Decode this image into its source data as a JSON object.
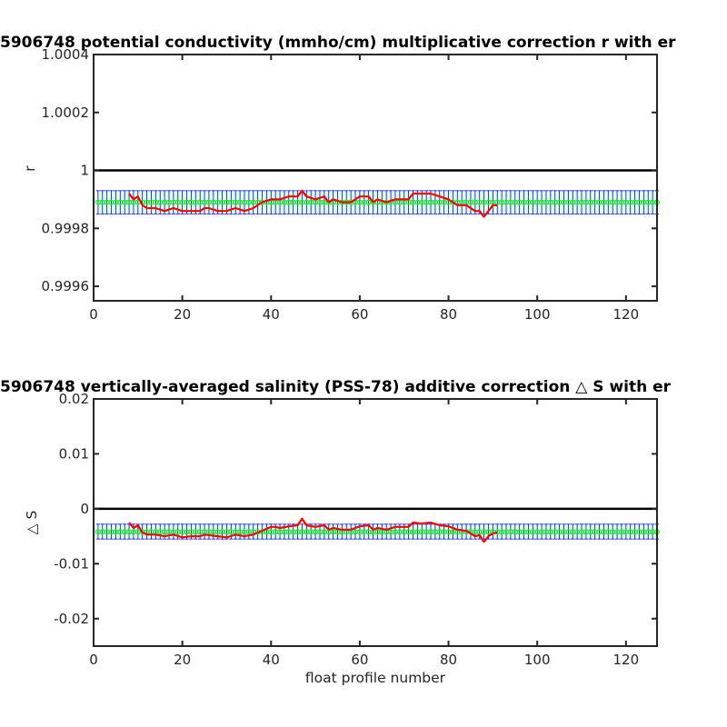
{
  "chart_data": [
    {
      "type": "line",
      "title": "5906748 potential conductivity (mmho/cm) multiplicative correction r with er",
      "xlabel": "",
      "ylabel": "r",
      "xlim": [
        0,
        127
      ],
      "ylim": [
        0.99955,
        1.0004
      ],
      "xticks": [
        0,
        20,
        40,
        60,
        80,
        100,
        120
      ],
      "xtick_labels": [
        "0",
        "20",
        "40",
        "60",
        "80",
        "100",
        "120"
      ],
      "yticks": [
        0.9996,
        0.9998,
        1,
        1.0002,
        1.0004
      ],
      "ytick_labels": [
        "0.9996",
        "0.9998",
        "1",
        "1.0002",
        "1.0004"
      ],
      "reference_line": 1,
      "grid": false,
      "error_band": {
        "center": 0.99989,
        "lower": 0.99985,
        "upper": 0.99993,
        "x_range": [
          1,
          127
        ],
        "marker_color": "#00ff00",
        "errorbar_color": "#0000ff"
      },
      "series": [
        {
          "color": "#ff0000",
          "x": [
            8,
            9,
            10,
            11,
            12,
            14,
            16,
            18,
            20,
            22,
            24,
            25,
            26,
            28,
            30,
            32,
            34,
            36,
            38,
            40,
            41,
            42,
            44,
            46,
            47,
            48,
            50,
            52,
            53,
            54,
            56,
            58,
            60,
            62,
            63,
            64,
            66,
            68,
            70,
            71,
            72,
            74,
            76,
            78,
            80,
            82,
            84,
            86,
            87,
            88,
            89,
            90,
            91
          ],
          "y": [
            0.99992,
            0.9999,
            0.99991,
            0.99988,
            0.99987,
            0.99987,
            0.99986,
            0.99987,
            0.99986,
            0.99986,
            0.99986,
            0.99987,
            0.99987,
            0.99986,
            0.99986,
            0.99987,
            0.99986,
            0.99987,
            0.99989,
            0.9999,
            0.9999,
            0.9999,
            0.99991,
            0.99991,
            0.99993,
            0.99991,
            0.9999,
            0.99991,
            0.99989,
            0.9999,
            0.99989,
            0.99989,
            0.99991,
            0.99991,
            0.99989,
            0.9999,
            0.99989,
            0.9999,
            0.9999,
            0.9999,
            0.99992,
            0.99992,
            0.99992,
            0.99991,
            0.9999,
            0.99988,
            0.99988,
            0.99986,
            0.99986,
            0.99984,
            0.99986,
            0.99988,
            0.99988
          ]
        }
      ]
    },
    {
      "type": "line",
      "title": "5906748 vertically-averaged salinity (PSS-78) additive correction △ S with er",
      "xlabel": "float profile number",
      "ylabel": "△ S",
      "xlim": [
        0,
        127
      ],
      "ylim": [
        -0.025,
        0.02
      ],
      "xticks": [
        0,
        20,
        40,
        60,
        80,
        100,
        120
      ],
      "xtick_labels": [
        "0",
        "20",
        "40",
        "60",
        "80",
        "100",
        "120"
      ],
      "yticks": [
        -0.02,
        -0.01,
        0,
        0.01,
        0.02
      ],
      "ytick_labels": [
        "-0.02",
        "-0.01",
        "0",
        "0.01",
        "0.02"
      ],
      "reference_line": 0,
      "grid": false,
      "error_band": {
        "center": -0.0042,
        "lower": -0.0055,
        "upper": -0.0028,
        "x_range": [
          1,
          127
        ],
        "marker_color": "#00ff00",
        "errorbar_color": "#0000ff"
      },
      "series": [
        {
          "color": "#ff0000",
          "x": [
            8,
            9,
            10,
            11,
            12,
            14,
            16,
            18,
            20,
            22,
            24,
            25,
            26,
            28,
            30,
            32,
            34,
            36,
            38,
            40,
            41,
            42,
            44,
            46,
            47,
            48,
            50,
            52,
            53,
            54,
            56,
            58,
            60,
            62,
            63,
            64,
            66,
            68,
            70,
            71,
            72,
            74,
            76,
            78,
            80,
            82,
            84,
            86,
            87,
            88,
            89,
            90,
            91
          ],
          "y": [
            -0.0025,
            -0.0035,
            -0.003,
            -0.0043,
            -0.0047,
            -0.0047,
            -0.005,
            -0.0047,
            -0.0052,
            -0.005,
            -0.005,
            -0.0047,
            -0.0048,
            -0.005,
            -0.0052,
            -0.0047,
            -0.005,
            -0.0047,
            -0.004,
            -0.0033,
            -0.0033,
            -0.0035,
            -0.0032,
            -0.003,
            -0.0018,
            -0.003,
            -0.0033,
            -0.003,
            -0.0038,
            -0.0035,
            -0.0038,
            -0.0038,
            -0.0032,
            -0.003,
            -0.0038,
            -0.0035,
            -0.0038,
            -0.0033,
            -0.0033,
            -0.0033,
            -0.0025,
            -0.0027,
            -0.0025,
            -0.003,
            -0.0032,
            -0.0038,
            -0.004,
            -0.005,
            -0.0048,
            -0.006,
            -0.005,
            -0.0045,
            -0.0043
          ]
        }
      ]
    }
  ]
}
